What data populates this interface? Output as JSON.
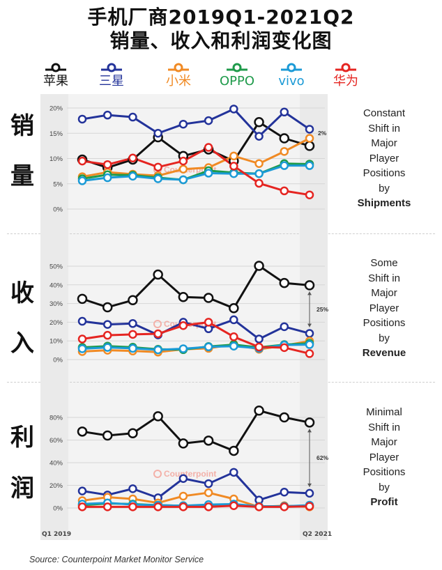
{
  "title": {
    "line1": "手机厂商2019Q1-2021Q2",
    "line2": "销量、收入和利润变化图"
  },
  "legend": [
    {
      "name": "苹果",
      "color": "#111111"
    },
    {
      "name": "三星",
      "color": "#23339a"
    },
    {
      "name": "小米",
      "color": "#f08a24"
    },
    {
      "name": "OPPO",
      "color": "#1e9a4a"
    },
    {
      "name": "vivo",
      "color": "#1b9ad6"
    },
    {
      "name": "华为",
      "color": "#e52521"
    }
  ],
  "rows": [
    {
      "label_top": "销",
      "label_bottom": "量",
      "side": [
        "Constant",
        "Shift in",
        "Major",
        "Player",
        "Positions",
        "by"
      ],
      "side_bold": "Shipments"
    },
    {
      "label_top": "收",
      "label_bottom": "入",
      "side": [
        "Some",
        "Shift in",
        "Major",
        "Player",
        "Positions",
        "by"
      ],
      "side_bold": "Revenue"
    },
    {
      "label_top": "利",
      "label_bottom": "润",
      "side": [
        "Minimal",
        "Shift in",
        "Major",
        "Player",
        "Positions",
        "by"
      ],
      "side_bold": "Profit"
    }
  ],
  "watermark": "Counterpoint",
  "x_start_label": "Q1 2019",
  "x_end_label": "Q2 2021",
  "source": "Source: Counterpoint Market Monitor Service",
  "chart_data": [
    {
      "type": "line",
      "title": "",
      "ylabel": "",
      "ylim": [
        0,
        20
      ],
      "yticks": [
        "0%",
        "5%",
        "10%",
        "15%",
        "20%"
      ],
      "x": [
        "Q1 2019",
        "Q2 2019",
        "Q3 2019",
        "Q4 2019",
        "Q1 2020",
        "Q2 2020",
        "Q3 2020",
        "Q4 2020",
        "Q1 2021",
        "Q2 2021"
      ],
      "annotation": "2%",
      "series": [
        {
          "name": "苹果",
          "values": [
            9.8,
            8.2,
            9.8,
            14.2,
            10.5,
            11.8,
            9.5,
            17.2,
            14.0,
            12.5
          ]
        },
        {
          "name": "三星",
          "values": [
            17.8,
            18.6,
            18.2,
            15.0,
            16.8,
            17.5,
            19.8,
            14.4,
            19.2,
            15.8
          ]
        },
        {
          "name": "小米",
          "values": [
            6.4,
            7.3,
            6.9,
            6.6,
            7.9,
            8.2,
            10.5,
            9.0,
            11.4,
            14.0
          ]
        },
        {
          "name": "OPPO",
          "values": [
            6.0,
            6.8,
            6.7,
            6.2,
            5.8,
            7.6,
            7.2,
            7.0,
            9.0,
            8.9
          ]
        },
        {
          "name": "vivo",
          "values": [
            5.6,
            6.2,
            6.5,
            6.0,
            5.8,
            7.1,
            7.0,
            7.0,
            8.6,
            8.6
          ]
        },
        {
          "name": "华为",
          "values": [
            9.5,
            8.8,
            10.1,
            8.3,
            9.5,
            12.2,
            8.5,
            5.1,
            3.6,
            2.8
          ]
        }
      ]
    },
    {
      "type": "line",
      "title": "",
      "ylabel": "",
      "ylim": [
        0,
        50
      ],
      "yticks": [
        "0%",
        "10%",
        "20%",
        "30%",
        "40%",
        "50%"
      ],
      "x": [
        "Q1 2019",
        "Q2 2019",
        "Q3 2019",
        "Q4 2019",
        "Q1 2020",
        "Q2 2020",
        "Q3 2020",
        "Q4 2020",
        "Q1 2021",
        "Q2 2021"
      ],
      "annotation": "25%",
      "series": [
        {
          "name": "苹果",
          "values": [
            32.5,
            28.0,
            31.8,
            45.5,
            33.5,
            33.0,
            27.5,
            50.2,
            41.0,
            39.8
          ]
        },
        {
          "name": "三星",
          "values": [
            20.5,
            18.8,
            19.3,
            13.2,
            20.0,
            16.5,
            21.3,
            11.0,
            17.6,
            14.0
          ]
        },
        {
          "name": "小米",
          "values": [
            4.3,
            5.0,
            4.6,
            4.0,
            5.5,
            6.0,
            8.2,
            5.5,
            7.5,
            9.9
          ]
        },
        {
          "name": "OPPO",
          "values": [
            6.5,
            7.2,
            6.6,
            5.5,
            5.3,
            7.0,
            8.0,
            6.5,
            8.0,
            8.7
          ]
        },
        {
          "name": "vivo",
          "values": [
            5.8,
            6.5,
            6.0,
            5.2,
            5.8,
            6.8,
            7.2,
            6.0,
            7.8,
            8.0
          ]
        },
        {
          "name": "华为",
          "values": [
            11.0,
            13.0,
            13.5,
            13.8,
            18.2,
            20.0,
            12.2,
            6.7,
            6.4,
            3.2
          ]
        }
      ]
    },
    {
      "type": "line",
      "title": "",
      "ylabel": "",
      "ylim": [
        0,
        80
      ],
      "yticks": [
        "0%",
        "20%",
        "40%",
        "60%",
        "80%"
      ],
      "x": [
        "Q1 2019",
        "Q2 2019",
        "Q3 2019",
        "Q4 2019",
        "Q1 2020",
        "Q2 2020",
        "Q3 2020",
        "Q4 2020",
        "Q1 2021",
        "Q2 2021"
      ],
      "annotation": "62%",
      "series": [
        {
          "name": "苹果",
          "values": [
            67.5,
            64.0,
            66.0,
            81.0,
            57.0,
            59.5,
            50.5,
            86.0,
            80.0,
            75.5
          ]
        },
        {
          "name": "三星",
          "values": [
            15.0,
            11.5,
            17.0,
            9.0,
            26.0,
            21.5,
            31.5,
            7.0,
            14.0,
            13.0
          ]
        },
        {
          "name": "小米",
          "values": [
            6.5,
            9.5,
            8.0,
            4.5,
            10.5,
            13.5,
            8.0,
            1.0,
            2.0,
            1.0
          ]
        },
        {
          "name": "OPPO",
          "values": [
            2.5,
            4.0,
            3.5,
            2.5,
            2.0,
            2.5,
            3.0,
            1.5,
            1.5,
            2.0
          ]
        },
        {
          "name": "vivo",
          "values": [
            3.5,
            4.5,
            3.0,
            2.5,
            2.0,
            3.0,
            3.5,
            1.5,
            1.5,
            2.5
          ]
        },
        {
          "name": "华为",
          "values": [
            1.0,
            1.0,
            1.0,
            1.0,
            1.0,
            1.0,
            2.0,
            1.0,
            1.0,
            1.5
          ]
        }
      ]
    }
  ]
}
